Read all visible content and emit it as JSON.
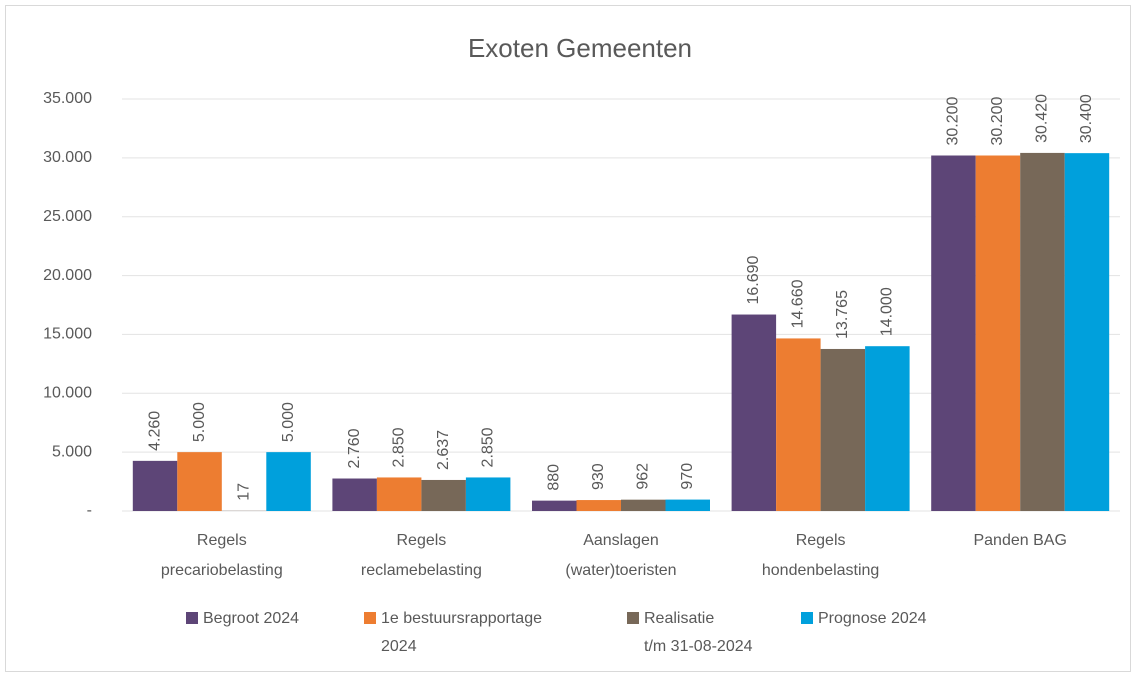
{
  "chart_data": {
    "type": "bar",
    "title": "Exoten Gemeenten",
    "categories": [
      "Regels\nprecariobelasting",
      "Regels\nreclamebelasting",
      "Aanslagen\n(water)toeristen",
      "Regels\nhondenbelasting",
      "Panden BAG"
    ],
    "series": [
      {
        "name": "Begroot 2024",
        "color": "#5d4577",
        "values": [
          4260,
          2760,
          880,
          16690,
          30200
        ],
        "value_labels": [
          "4.260",
          "2.760",
          "880",
          "16.690",
          "30.200"
        ]
      },
      {
        "name": "1e bestuursrapportage\n2024",
        "color": "#ed7d31",
        "values": [
          5000,
          2850,
          930,
          14660,
          30200
        ],
        "value_labels": [
          "5.000",
          "2.850",
          "930",
          "14.660",
          "30.200"
        ]
      },
      {
        "name": "Realisatie\nt/m 31-08-2024",
        "color": "#776858",
        "values": [
          17,
          2637,
          962,
          13765,
          30420
        ],
        "value_labels": [
          "17",
          "2.637",
          "962",
          "13.765",
          "30.420"
        ]
      },
      {
        "name": "Prognose 2024",
        "color": "#00a0dc",
        "values": [
          5000,
          2850,
          970,
          14000,
          30400
        ],
        "value_labels": [
          "5.000",
          "2.850",
          "970",
          "14.000",
          "30.400"
        ]
      }
    ],
    "ylim": [
      0,
      35000
    ],
    "yticks": [
      {
        "value": 0,
        "label": "-"
      },
      {
        "value": 5000,
        "label": "5.000"
      },
      {
        "value": 10000,
        "label": "10.000"
      },
      {
        "value": 15000,
        "label": "15.000"
      },
      {
        "value": 20000,
        "label": "20.000"
      },
      {
        "value": 25000,
        "label": "25.000"
      },
      {
        "value": 30000,
        "label": "30.000"
      },
      {
        "value": 35000,
        "label": "35.000"
      }
    ],
    "grid": true,
    "legend": "bottom"
  }
}
